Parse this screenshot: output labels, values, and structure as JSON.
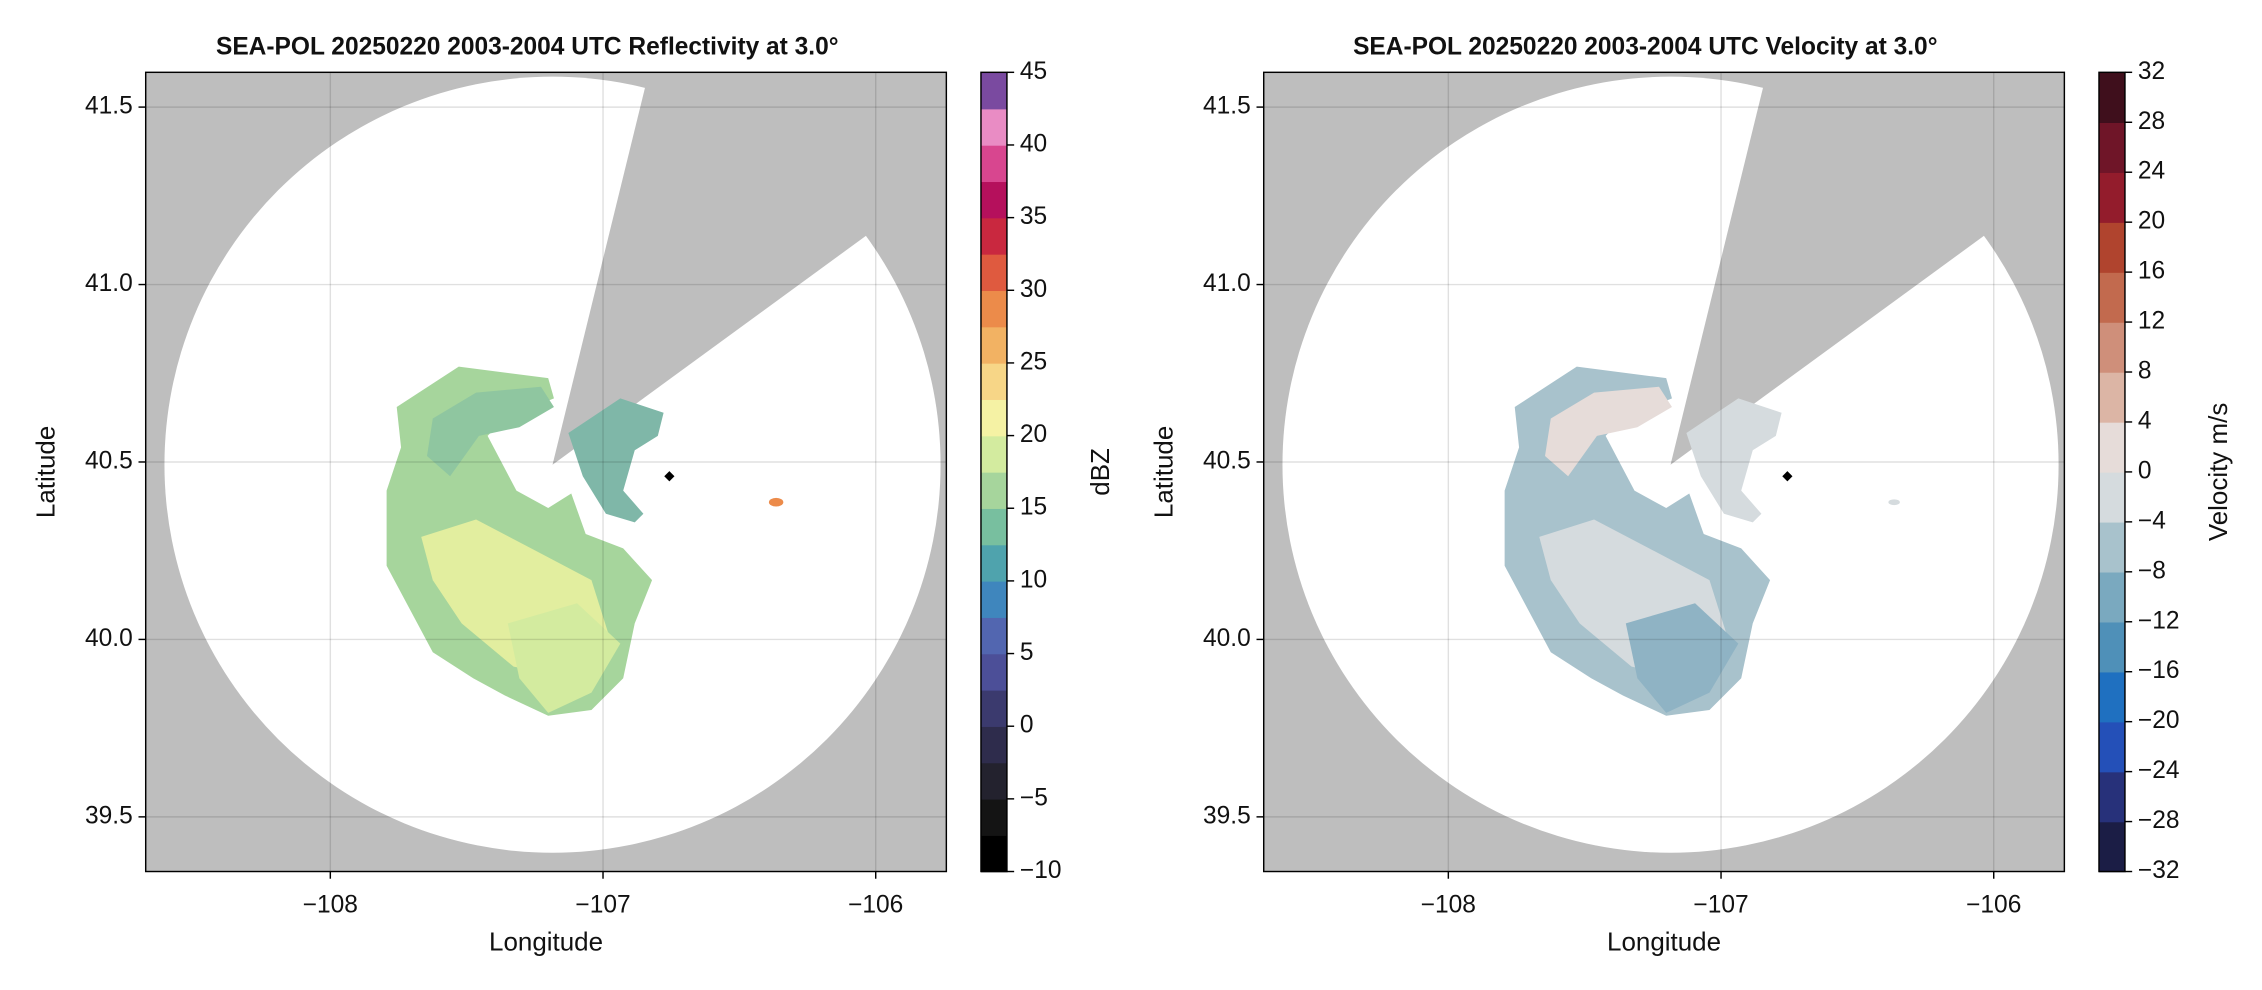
{
  "chart_data": [
    {
      "type": "radar-map",
      "title": "SEA-POL 20250220 2003-2004 UTC Reflectivity at 3.0°",
      "xlabel": "Longitude",
      "ylabel": "Latitude",
      "xlim": [
        -108.677,
        -105.741
      ],
      "ylim": [
        39.346,
        41.598
      ],
      "xticks": [
        {
          "value": -108,
          "label": "−108"
        },
        {
          "value": -107,
          "label": "−107"
        },
        {
          "value": -106,
          "label": "−106"
        }
      ],
      "yticks": [
        39.5,
        {
          "value": 40,
          "label": "40.0"
        },
        40.5,
        {
          "value": 41,
          "label": "41.0"
        },
        41.5
      ],
      "grid": true,
      "background_color": "#bebebe",
      "colorbar": {
        "label": "dBZ",
        "lim": [
          -10,
          45
        ],
        "ticks": [
          {
            "value": -10,
            "label": "−10"
          },
          {
            "value": -5,
            "label": "−5"
          },
          0,
          5,
          10,
          15,
          20,
          25,
          30,
          35,
          40,
          45
        ],
        "colors": [
          "#000000",
          "#141414",
          "#23222e",
          "#2e2c4c",
          "#3b3a6e",
          "#4c4f98",
          "#5266b0",
          "#3f86bd",
          "#4fa3ad",
          "#78bf9f",
          "#a6d59c",
          "#d3eb9f",
          "#f5f2a4",
          "#f7d687",
          "#f2b263",
          "#ec8b4a",
          "#df5a3f",
          "#c9283f",
          "#b5105c",
          "#d8468f",
          "#e98cc4",
          "#7a4aa0"
        ]
      }
    },
    {
      "type": "radar-map",
      "title": "SEA-POL 20250220 2003-2004 UTC Velocity at 3.0°",
      "xlabel": "Longitude",
      "ylabel": "Latitude",
      "xlim": [
        -108.677,
        -105.741
      ],
      "ylim": [
        39.346,
        41.598
      ],
      "xticks": [
        {
          "value": -108,
          "label": "−108"
        },
        {
          "value": -107,
          "label": "−107"
        },
        {
          "value": -106,
          "label": "−106"
        }
      ],
      "yticks": [
        39.5,
        {
          "value": 40,
          "label": "40.0"
        },
        40.5,
        {
          "value": 41,
          "label": "41.0"
        },
        41.5
      ],
      "grid": true,
      "background_color": "#bebebe",
      "colorbar": {
        "label": "Velocity m/s",
        "lim": [
          -32,
          32
        ],
        "ticks": [
          {
            "value": -32,
            "label": "−32"
          },
          {
            "value": -28,
            "label": "−28"
          },
          {
            "value": -24,
            "label": "−24"
          },
          {
            "value": -20,
            "label": "−20"
          },
          {
            "value": -16,
            "label": "−16"
          },
          {
            "value": -12,
            "label": "−12"
          },
          {
            "value": -8,
            "label": "−8"
          },
          {
            "value": -4,
            "label": "−4"
          },
          0,
          4,
          8,
          12,
          16,
          20,
          24,
          28,
          32
        ],
        "colors": [
          "#1b1d45",
          "#27317a",
          "#2450b8",
          "#1f70c0",
          "#4f90b8",
          "#7aa9bf",
          "#a8c2cc",
          "#d5dbde",
          "#e6dcd9",
          "#dcb5a5",
          "#cf8f7a",
          "#c26a4e",
          "#b0442e",
          "#931c2c",
          "#6f1528",
          "#3f0f1c"
        ]
      }
    }
  ]
}
